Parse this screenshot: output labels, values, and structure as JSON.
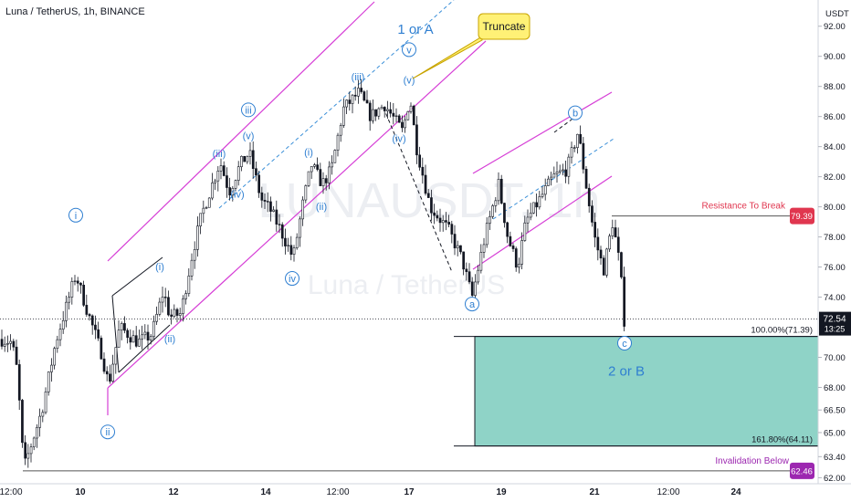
{
  "header": {
    "title": "Luna / TetherUS, 1h, BINANCE"
  },
  "watermark": {
    "symbol": "LUNAUSDT, 1h",
    "name": "Luna / TetherUS"
  },
  "colors": {
    "up": "#131722",
    "down": "#131722",
    "channel": "#d63fd6",
    "dashed": "#3a8fd8",
    "wave_label": "#2f7fd1",
    "zone_fill": "#8fd3c7",
    "resistance": "#e0364f",
    "invalidation": "#9c27b0",
    "callout": "#fff176"
  },
  "chart_data": {
    "type": "candlestick",
    "title": "Luna / TetherUS, 1h, BINANCE",
    "price_unit": "USDT",
    "x_ticks": [
      "12:00",
      "10",
      "12",
      "14",
      "12:00",
      "17",
      "19",
      "21",
      "12:00",
      "24"
    ],
    "y_ticks": [
      "92.00",
      "90.00",
      "88.00",
      "86.00",
      "84.00",
      "82.00",
      "80.00",
      "78.00",
      "76.00",
      "74.00",
      "70.00",
      "68.00",
      "66.50",
      "65.00",
      "63.40",
      "62.00"
    ],
    "ylim": [
      61.6,
      93.5
    ],
    "path_points": [
      [
        0,
        71.2
      ],
      [
        12,
        71.0
      ],
      [
        18,
        69.0
      ],
      [
        25,
        62.6
      ],
      [
        45,
        66.5
      ],
      [
        60,
        71.0
      ],
      [
        82,
        75.5
      ],
      [
        95,
        73.0
      ],
      [
        110,
        70.3
      ],
      [
        118,
        68.2
      ],
      [
        130,
        72.0
      ],
      [
        150,
        71.0
      ],
      [
        165,
        71.5
      ],
      [
        178,
        74.4
      ],
      [
        185,
        72.7
      ],
      [
        197,
        72.9
      ],
      [
        210,
        77.0
      ],
      [
        220,
        79.5
      ],
      [
        240,
        83.0
      ],
      [
        250,
        81.0
      ],
      [
        262,
        82.8
      ],
      [
        272,
        83.6
      ],
      [
        285,
        80.5
      ],
      [
        295,
        79.8
      ],
      [
        305,
        78.6
      ],
      [
        320,
        76.6
      ],
      [
        330,
        80.0
      ],
      [
        340,
        82.8
      ],
      [
        352,
        81.5
      ],
      [
        362,
        82.5
      ],
      [
        375,
        86.5
      ],
      [
        392,
        87.6
      ],
      [
        405,
        86.0
      ],
      [
        420,
        86.8
      ],
      [
        440,
        85.0
      ],
      [
        448,
        87.3
      ],
      [
        455,
        84.0
      ],
      [
        470,
        80.0
      ],
      [
        490,
        78.5
      ],
      [
        505,
        76.5
      ],
      [
        516,
        74.0
      ],
      [
        530,
        78.0
      ],
      [
        545,
        81.5
      ],
      [
        555,
        78.0
      ],
      [
        566,
        76.0
      ],
      [
        575,
        79.0
      ],
      [
        590,
        80.5
      ],
      [
        605,
        82.0
      ],
      [
        620,
        82.5
      ],
      [
        632,
        85.0
      ],
      [
        642,
        81.0
      ],
      [
        650,
        78.0
      ],
      [
        660,
        75.8
      ],
      [
        670,
        79.0
      ],
      [
        678,
        76.0
      ],
      [
        684,
        71.4
      ]
    ],
    "current_price": "72.54",
    "countdown": "13:25",
    "levels": [
      {
        "label": "Resistance To Break",
        "price": "79.39",
        "value": 79.39
      },
      {
        "label": "Invalidation Below",
        "price": "62.46",
        "value": 62.46
      }
    ],
    "fib_levels": [
      {
        "label": "100.00%(71.39)",
        "value": 71.39
      },
      {
        "label": "161.80%(64.11)",
        "value": 64.11
      }
    ],
    "wave_labels": [
      {
        "text": "i",
        "x": 83,
        "v": 79.2,
        "circled": true
      },
      {
        "text": "ii",
        "x": 118,
        "v": 64.8,
        "circled": true
      },
      {
        "text": "(i)",
        "x": 175,
        "v": 75.8,
        "circled": false
      },
      {
        "text": "(ii)",
        "x": 186,
        "v": 71.0,
        "circled": false
      },
      {
        "text": "iii",
        "x": 272,
        "v": 86.2,
        "circled": true
      },
      {
        "text": "(iii)",
        "x": 240,
        "v": 83.3,
        "circled": false
      },
      {
        "text": "(iv)",
        "x": 260,
        "v": 80.6,
        "circled": false
      },
      {
        "text": "(v)",
        "x": 272,
        "v": 84.5,
        "circled": false
      },
      {
        "text": "iv",
        "x": 320,
        "v": 75.0,
        "circled": true
      },
      {
        "text": "(i)",
        "x": 338,
        "v": 83.4,
        "circled": false
      },
      {
        "text": "(ii)",
        "x": 352,
        "v": 79.8,
        "circled": false
      },
      {
        "text": "(iii)",
        "x": 392,
        "v": 88.4,
        "circled": false
      },
      {
        "text": "(iv)",
        "x": 437,
        "v": 84.3,
        "circled": false
      },
      {
        "text": "(v)",
        "x": 448,
        "v": 88.2,
        "circled": false
      },
      {
        "text": "v",
        "x": 448,
        "v": 90.2,
        "circled": true
      },
      {
        "text": "b",
        "x": 630,
        "v": 86.0,
        "circled": true
      },
      {
        "text": "a",
        "x": 517,
        "v": 73.3,
        "circled": true
      },
      {
        "text": "c",
        "x": 684,
        "v": 70.7,
        "circled": true
      }
    ],
    "big_labels": [
      {
        "text": "1 or A",
        "x": 455,
        "v": 91.5
      },
      {
        "text": "2 or B",
        "x": 686,
        "v": 68.8
      }
    ],
    "callout": {
      "text": "Truncate"
    }
  }
}
